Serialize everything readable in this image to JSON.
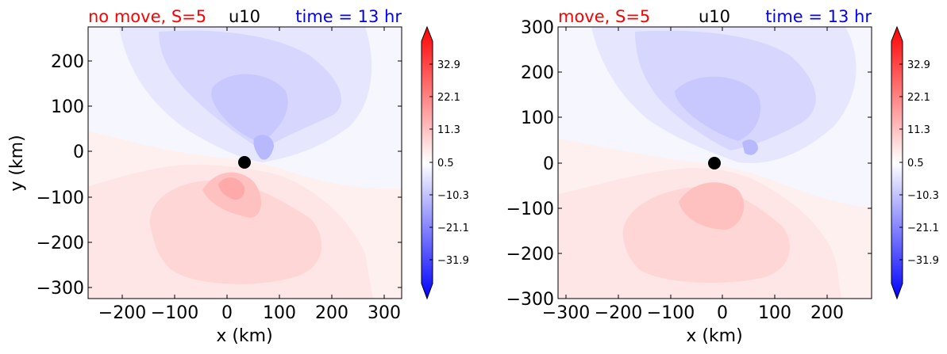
{
  "chart_data": [
    {
      "type": "heatmap",
      "title_left": "no move, S=5",
      "title_center": "u10",
      "title_right": "time = 13 hr",
      "xlabel": "x (km)",
      "ylabel": "y (km)",
      "xlim": [
        -265,
        335
      ],
      "ylim": [
        -325,
        275
      ],
      "xticks": [
        -200,
        -100,
        0,
        100,
        200,
        300
      ],
      "xtick_labels": [
        "−200",
        "−100",
        "0",
        "100",
        "200",
        "300"
      ],
      "yticks": [
        -300,
        -200,
        -100,
        0,
        100,
        200
      ],
      "ytick_labels": [
        "−300",
        "−200",
        "−100",
        "0",
        "100",
        "200"
      ],
      "marker": {
        "x": 35,
        "y": -25
      },
      "colorbar": {
        "ticks": [
          32.9,
          22.1,
          11.3,
          0.5,
          -10.3,
          -21.1,
          -31.9
        ],
        "tick_labels": [
          "32.9",
          "22.1",
          "11.3",
          "0.5",
          "−10.3",
          "−21.1",
          "−31.9"
        ],
        "range": [
          -42.7,
          43.7
        ],
        "cmap": "bwr"
      }
    },
    {
      "type": "heatmap",
      "title_left": "move, S=5",
      "title_center": "u10",
      "title_right": "time = 13 hr",
      "xlabel": "x (km)",
      "ylabel": "",
      "xlim": [
        -315,
        285
      ],
      "ylim": [
        -300,
        300
      ],
      "xticks": [
        -300,
        -200,
        -100,
        0,
        100,
        200
      ],
      "xtick_labels": [
        "−300",
        "−200",
        "−100",
        "0",
        "100",
        "200"
      ],
      "yticks": [
        -300,
        -200,
        -100,
        0,
        100,
        200,
        300
      ],
      "ytick_labels": [
        "−300",
        "−200",
        "−100",
        "0",
        "100",
        "200",
        "300"
      ],
      "marker": {
        "x": -15,
        "y": 0
      },
      "colorbar": {
        "ticks": [
          32.9,
          22.1,
          11.3,
          0.5,
          -10.3,
          -21.1,
          -31.9
        ],
        "tick_labels": [
          "32.9",
          "22.1",
          "11.3",
          "0.5",
          "−10.3",
          "−21.1",
          "−31.9"
        ],
        "range": [
          -42.7,
          43.7
        ],
        "cmap": "bwr"
      }
    }
  ],
  "colors": {
    "title_left": "#ff0000",
    "title_center": "#000000",
    "title_right": "#0000ff"
  }
}
